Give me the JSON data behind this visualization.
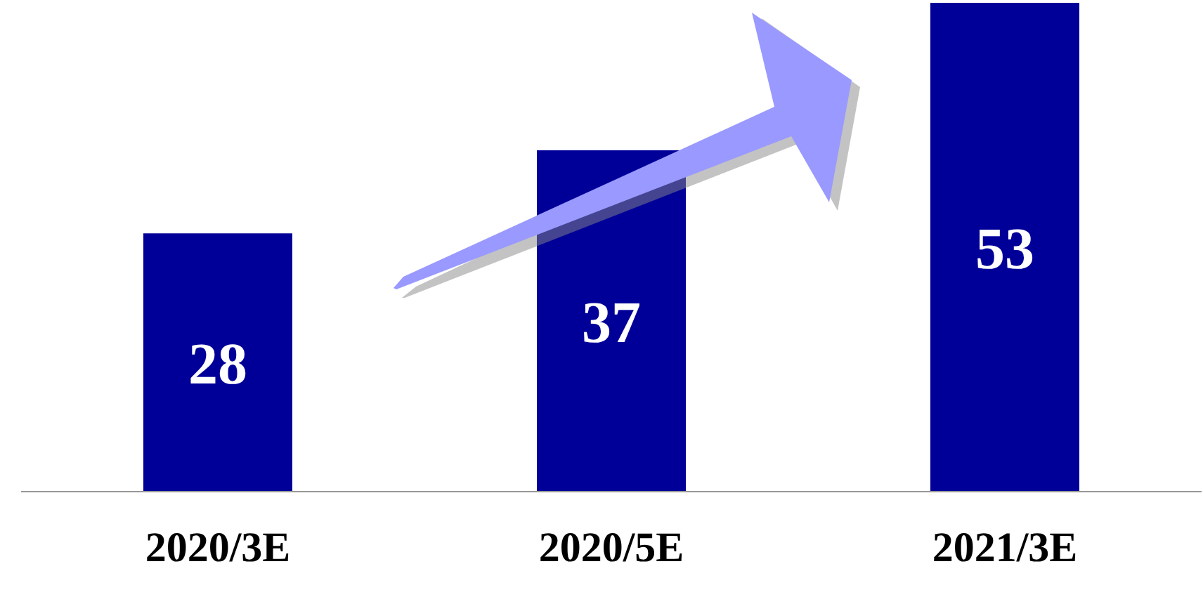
{
  "chart_data": {
    "type": "bar",
    "categories": [
      "2020/3E",
      "2020/5E",
      "2021/3E"
    ],
    "values": [
      28,
      37,
      53
    ],
    "color": "#000099",
    "data_labels": true
  }
}
